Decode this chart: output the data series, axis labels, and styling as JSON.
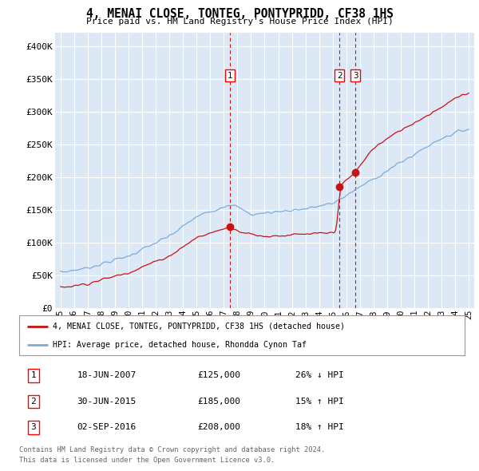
{
  "title": "4, MENAI CLOSE, TONTEG, PONTYPRIDD, CF38 1HS",
  "subtitle": "Price paid vs. HM Land Registry's House Price Index (HPI)",
  "plot_bg_color": "#dce8f5",
  "hpi_color": "#7aaddc",
  "price_color": "#cc1111",
  "dashed_color": "#cc1111",
  "ylim": [
    0,
    420000
  ],
  "yticks": [
    0,
    50000,
    100000,
    150000,
    200000,
    250000,
    300000,
    350000,
    400000
  ],
  "ytick_labels": [
    "£0",
    "£50K",
    "£100K",
    "£150K",
    "£200K",
    "£250K",
    "£300K",
    "£350K",
    "£400K"
  ],
  "xlim_start": 1994.6,
  "xlim_end": 2025.4,
  "transactions": [
    {
      "num": 1,
      "date": "18-JUN-2007",
      "price": 125000,
      "hpi_pct": "26%",
      "hpi_dir": "↓",
      "year": 2007.46
    },
    {
      "num": 2,
      "date": "30-JUN-2015",
      "price": 185000,
      "hpi_pct": "15%",
      "hpi_dir": "↑",
      "year": 2015.5
    },
    {
      "num": 3,
      "date": "02-SEP-2016",
      "price": 208000,
      "hpi_pct": "18%",
      "hpi_dir": "↑",
      "year": 2016.67
    }
  ],
  "legend_entries": [
    "4, MENAI CLOSE, TONTEG, PONTYPRIDD, CF38 1HS (detached house)",
    "HPI: Average price, detached house, Rhondda Cynon Taf"
  ],
  "footer_lines": [
    "Contains HM Land Registry data © Crown copyright and database right 2024.",
    "This data is licensed under the Open Government Licence v3.0."
  ]
}
